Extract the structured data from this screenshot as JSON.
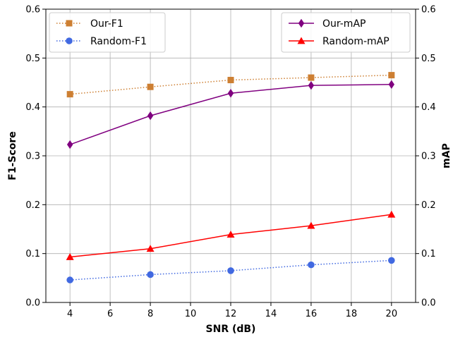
{
  "chart_data": {
    "type": "line",
    "xlabel": "SNR (dB)",
    "ylabel_left": "F1-Score",
    "ylabel_right": "mAP",
    "x": [
      4,
      8,
      12,
      16,
      20
    ],
    "xlim": [
      2.8,
      21.2
    ],
    "xticks": [
      "4",
      "6",
      "8",
      "10",
      "12",
      "14",
      "16",
      "18",
      "20"
    ],
    "ylim_left": [
      0,
      0.6
    ],
    "ylim_right": [
      0,
      0.6
    ],
    "yticks_left": [
      "0.0",
      "0.1",
      "0.2",
      "0.3",
      "0.4",
      "0.5",
      "0.6"
    ],
    "yticks_right": [
      "0.0",
      "0.1",
      "0.2",
      "0.3",
      "0.4",
      "0.5",
      "0.6"
    ],
    "grid": true,
    "series": [
      {
        "name": "Our-F1",
        "axis": "left",
        "color": "#CD7F32",
        "style": "dotted",
        "marker": "square",
        "values": [
          0.426,
          0.441,
          0.455,
          0.46,
          0.465
        ]
      },
      {
        "name": "Random-F1",
        "axis": "left",
        "color": "#4169E1",
        "style": "dotted",
        "marker": "circle",
        "values": [
          0.046,
          0.057,
          0.065,
          0.077,
          0.086
        ]
      },
      {
        "name": "Our-mAP",
        "axis": "right",
        "color": "#800080",
        "style": "solid",
        "marker": "diamond",
        "values": [
          0.323,
          0.382,
          0.428,
          0.444,
          0.446
        ]
      },
      {
        "name": "Random-mAP",
        "axis": "right",
        "color": "#FF0000",
        "style": "solid",
        "marker": "triangle",
        "values": [
          0.093,
          0.11,
          0.139,
          0.157,
          0.18
        ]
      }
    ],
    "legends": [
      {
        "placement": "top-left",
        "entries": [
          "Our-F1",
          "Random-F1"
        ]
      },
      {
        "placement": "top-right",
        "entries": [
          "Our-mAP",
          "Random-mAP"
        ]
      }
    ]
  }
}
